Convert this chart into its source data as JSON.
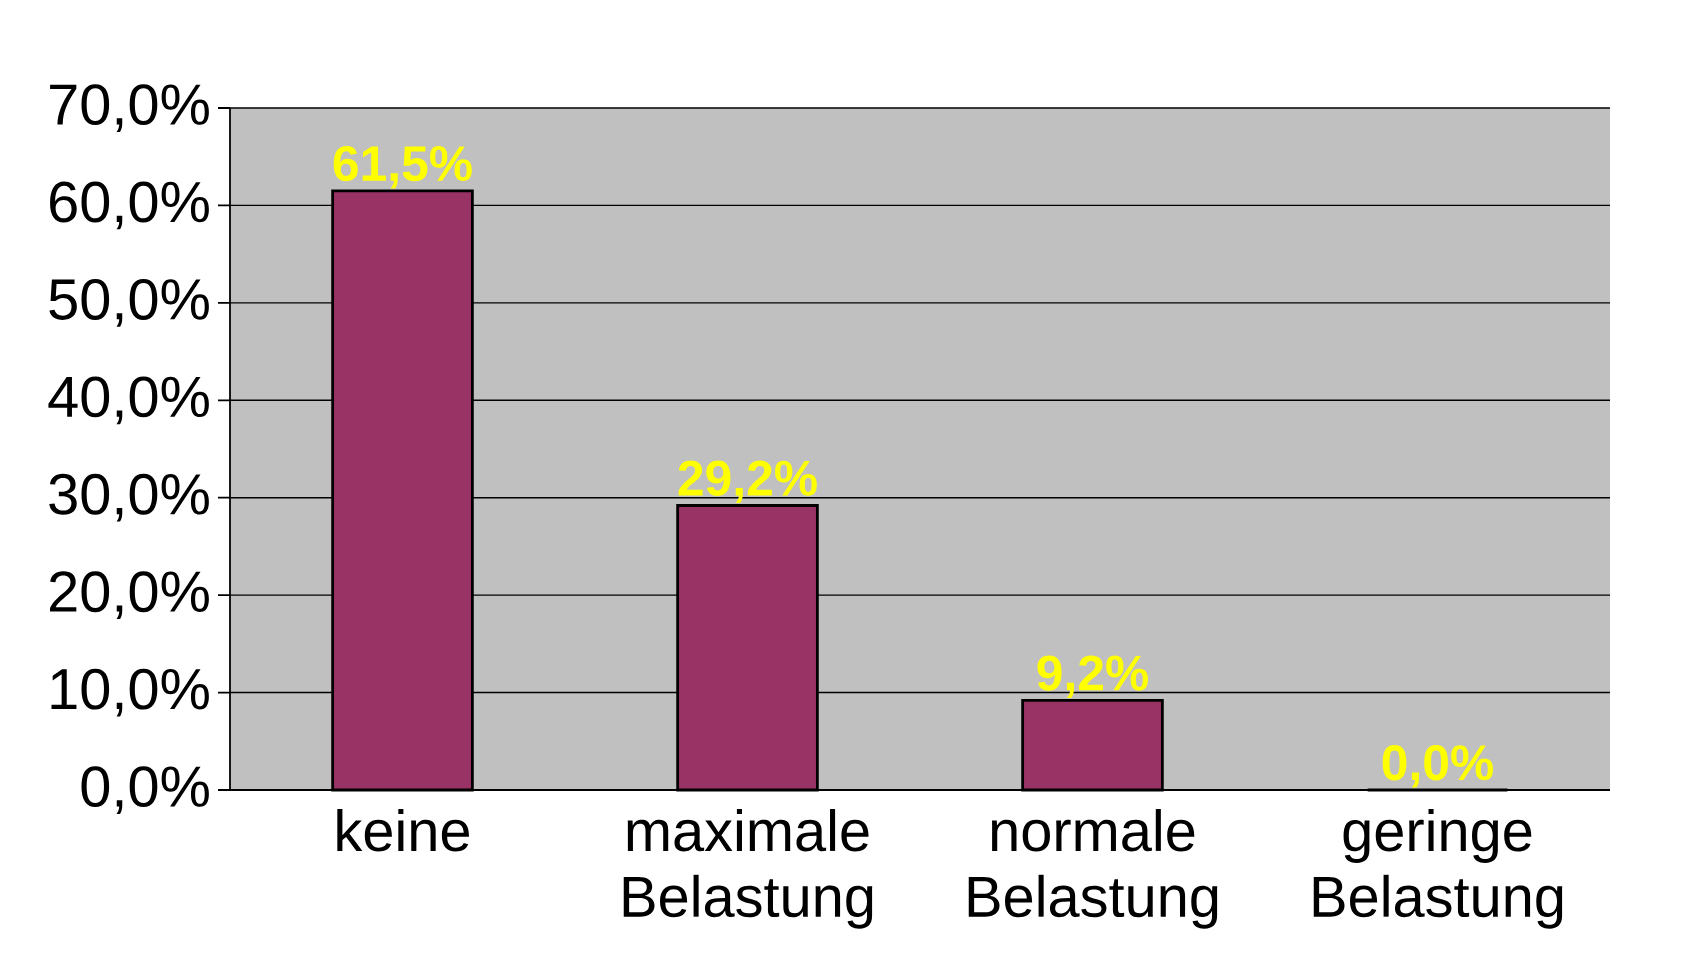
{
  "chart_data": {
    "type": "bar",
    "categories": [
      "keine",
      "maximale Belastung",
      "normale Belastung",
      "geringe Belastung"
    ],
    "values": [
      61.5,
      29.2,
      9.2,
      0.0
    ],
    "color": "#993366",
    "value_labels": [
      "61,5%",
      "29,2%",
      "9,2%",
      "0,0%"
    ],
    "ylim": [
      0,
      70
    ],
    "yticks": [
      {
        "value": 0,
        "label": "0,0%"
      },
      {
        "value": 10,
        "label": "10,0%"
      },
      {
        "value": 20,
        "label": "20,0%"
      },
      {
        "value": 30,
        "label": "30,0%"
      },
      {
        "value": 40,
        "label": "40,0%"
      },
      {
        "value": 50,
        "label": "50,0%"
      },
      {
        "value": 60,
        "label": "60,0%"
      },
      {
        "value": 70,
        "label": "70,0%"
      }
    ],
    "grid": "y"
  }
}
